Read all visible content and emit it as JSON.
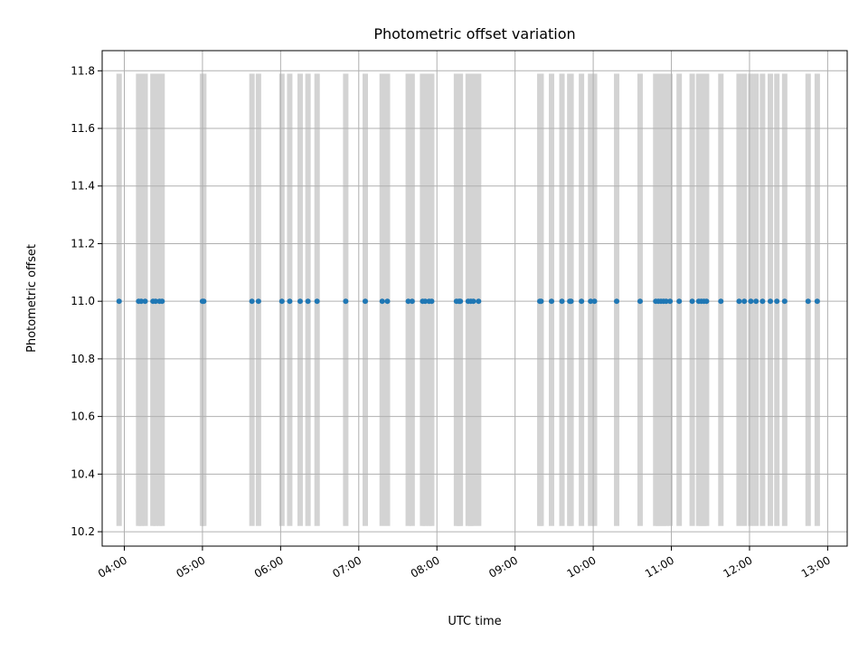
{
  "chart_data": {
    "type": "scatter",
    "title": "Photometric offset variation",
    "xlabel": "UTC time",
    "ylabel": "Photometric offset",
    "xlim": [
      "03:43",
      "13:15"
    ],
    "ylim": [
      10.15,
      11.87
    ],
    "grid": true,
    "point_color": "#1f77b4",
    "bar_color": "#d3d3d3",
    "x_ticks": [
      "04:00",
      "05:00",
      "06:00",
      "07:00",
      "08:00",
      "09:00",
      "10:00",
      "11:00",
      "12:00",
      "13:00"
    ],
    "y_ticks": [
      "10.2",
      "10.4",
      "10.6",
      "10.8",
      "11.0",
      "11.2",
      "11.4",
      "11.6",
      "11.8"
    ],
    "y_tick_values": [
      10.2,
      10.4,
      10.6,
      10.8,
      11.0,
      11.2,
      11.4,
      11.6,
      11.8
    ],
    "bar_range": [
      10.22,
      11.79
    ],
    "points": {
      "y": 11.0,
      "x": [
        "03:56",
        "04:11",
        "04:13",
        "04:16",
        "04:22",
        "04:24",
        "04:27",
        "04:29",
        "05:00",
        "05:01",
        "05:38",
        "05:43",
        "06:01",
        "06:07",
        "06:15",
        "06:21",
        "06:28",
        "06:50",
        "07:05",
        "07:18",
        "07:22",
        "07:38",
        "07:41",
        "07:49",
        "07:51",
        "07:54",
        "07:56",
        "08:15",
        "08:17",
        "08:18",
        "08:24",
        "08:26",
        "08:28",
        "08:32",
        "09:19",
        "09:20",
        "09:28",
        "09:36",
        "09:42",
        "09:43",
        "09:51",
        "09:58",
        "10:01",
        "10:18",
        "10:36",
        "10:48",
        "10:50",
        "10:52",
        "10:54",
        "10:56",
        "10:59",
        "11:06",
        "11:16",
        "11:21",
        "11:23",
        "11:25",
        "11:27",
        "11:38",
        "11:52",
        "11:56",
        "12:01",
        "12:05",
        "12:10",
        "12:16",
        "12:21",
        "12:27",
        "12:45",
        "12:52"
      ]
    }
  }
}
